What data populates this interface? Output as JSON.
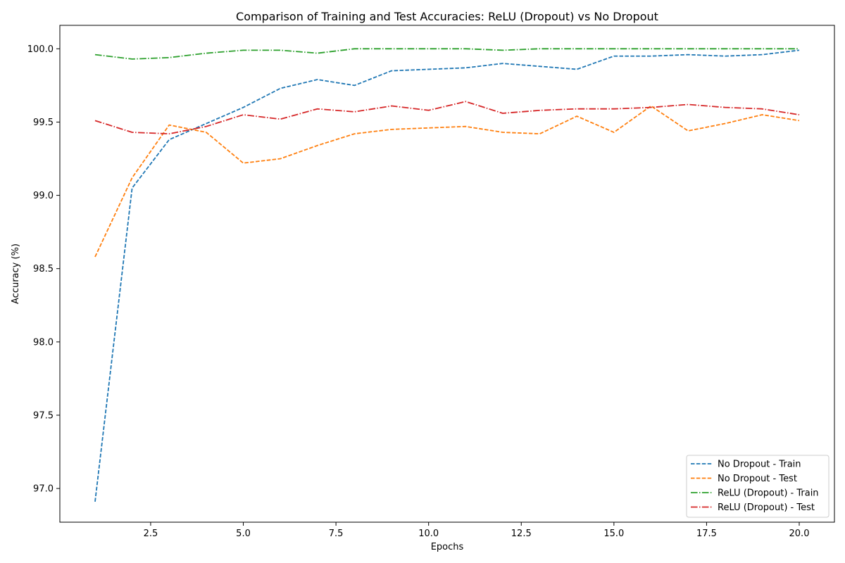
{
  "chart_data": {
    "type": "line",
    "title": "Comparison of Training and Test Accuracies: ReLU (Dropout) vs No Dropout",
    "xlabel": "Epochs",
    "ylabel": "Accuracy (%)",
    "xlim": [
      0.05,
      20.95
    ],
    "ylim": [
      96.77,
      100.16
    ],
    "xticks": [
      2.5,
      5.0,
      7.5,
      10.0,
      12.5,
      15.0,
      17.5,
      20.0
    ],
    "xtick_labels": [
      "2.5",
      "5.0",
      "7.5",
      "10.0",
      "12.5",
      "15.0",
      "17.5",
      "20.0"
    ],
    "yticks": [
      97.0,
      97.5,
      98.0,
      98.5,
      99.0,
      99.5,
      100.0
    ],
    "ytick_labels": [
      "97.0",
      "97.5",
      "98.0",
      "98.5",
      "99.0",
      "99.5",
      "100.0"
    ],
    "grid": false,
    "legend_position": "bottom-right",
    "x": [
      1,
      2,
      3,
      4,
      5,
      6,
      7,
      8,
      9,
      10,
      11,
      12,
      13,
      14,
      15,
      16,
      17,
      18,
      19,
      20
    ],
    "series": [
      {
        "name": "No Dropout - Train",
        "color": "#1f77b4",
        "linestyle": "dashed",
        "values": [
          96.91,
          99.05,
          99.38,
          99.49,
          99.6,
          99.73,
          99.79,
          99.75,
          99.85,
          99.86,
          99.87,
          99.9,
          99.88,
          99.86,
          99.95,
          99.95,
          99.96,
          99.95,
          99.96,
          99.99
        ]
      },
      {
        "name": "No Dropout - Test",
        "color": "#ff7f0e",
        "linestyle": "dashed",
        "values": [
          98.58,
          99.12,
          99.48,
          99.43,
          99.22,
          99.25,
          99.34,
          99.42,
          99.45,
          99.46,
          99.47,
          99.43,
          99.42,
          99.54,
          99.43,
          99.61,
          99.44,
          99.49,
          99.55,
          99.51
        ]
      },
      {
        "name": "ReLU (Dropout) - Train",
        "color": "#2ca02c",
        "linestyle": "dashdot",
        "values": [
          99.96,
          99.93,
          99.94,
          99.97,
          99.99,
          99.99,
          99.97,
          100.0,
          100.0,
          100.0,
          100.0,
          99.99,
          100.0,
          100.0,
          100.0,
          100.0,
          100.0,
          100.0,
          100.0,
          100.0
        ]
      },
      {
        "name": "ReLU (Dropout) - Test",
        "color": "#d62728",
        "linestyle": "dashdot",
        "values": [
          99.51,
          99.43,
          99.42,
          99.47,
          99.55,
          99.52,
          99.59,
          99.57,
          99.61,
          99.58,
          99.64,
          99.56,
          99.58,
          99.59,
          99.59,
          99.6,
          99.62,
          99.6,
          99.59,
          99.55
        ]
      }
    ]
  }
}
